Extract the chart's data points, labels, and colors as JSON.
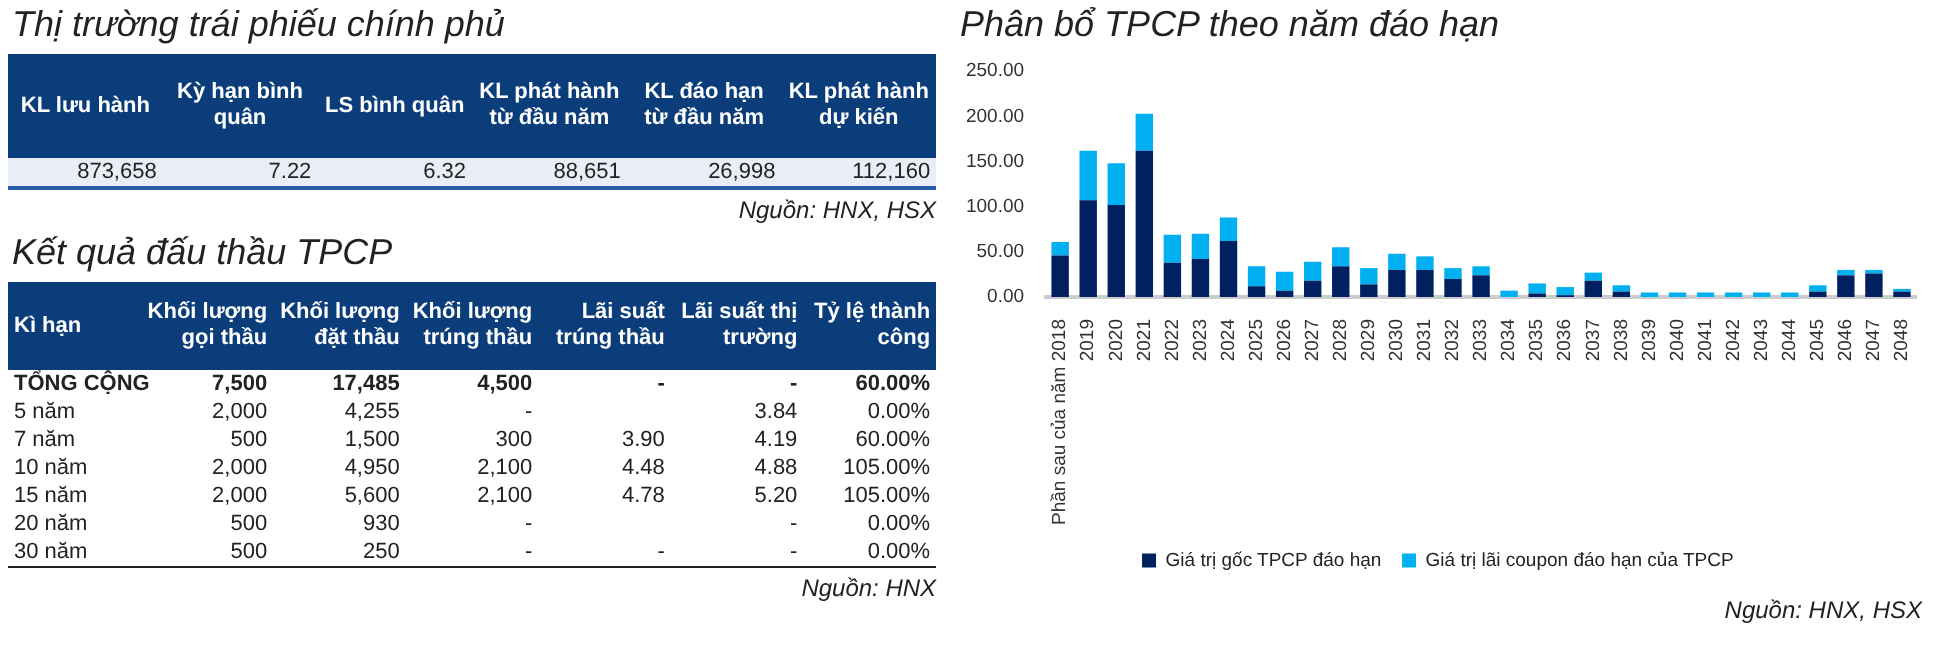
{
  "chart_data": [
    {
      "type": "other",
      "title": "Thị trường trái phiếu chính phủ",
      "categories": [
        "KL lưu hành",
        "Kỳ hạn bình quân",
        "LS bình quân",
        "KL phát hành từ đầu năm",
        "KL đáo hạn từ đầu năm",
        "KL phát hành dự kiến"
      ],
      "cell_labels": [
        [
          "873,658",
          "7.22",
          "6.32",
          "88,651",
          "26,998",
          "112,160"
        ]
      ],
      "annotations": [
        "Nguồn: HNX, HSX"
      ]
    },
    {
      "type": "other",
      "title": "Kết quả đấu thầu TPCP",
      "categories": [
        "Kì hạn",
        "Khối lượng gọi thầu",
        "Khối lượng đặt thầu",
        "Khối lượng trúng thầu",
        "Lãi suất trúng thầu",
        "Lãi suất thị trường",
        "Tỷ lệ thành công"
      ],
      "y_categories": [
        "TỔNG CỘNG",
        "5 năm",
        "7 năm",
        "10 năm",
        "15 năm",
        "20 năm",
        "30 năm"
      ],
      "cell_labels": [
        [
          "7,500",
          "17,485",
          "4,500",
          "-",
          "-",
          "60.00%"
        ],
        [
          "2,000",
          "4,255",
          "-",
          null,
          "3.84",
          "0.00%"
        ],
        [
          "500",
          "1,500",
          "300",
          "3.90",
          "4.19",
          "60.00%"
        ],
        [
          "2,000",
          "4,950",
          "2,100",
          "4.48",
          "4.88",
          "105.00%"
        ],
        [
          "2,000",
          "5,600",
          "2,100",
          "4.78",
          "5.20",
          "105.00%"
        ],
        [
          "500",
          "930",
          "-",
          null,
          "-",
          "0.00%"
        ],
        [
          "500",
          "250",
          "-",
          "-",
          "-",
          "0.00%"
        ]
      ],
      "annotations": [
        "Nguồn: HNX"
      ]
    },
    {
      "type": "bar",
      "title": "Phân bổ TPCP theo năm đáo hạn",
      "stacked": true,
      "legend": "bottom",
      "categories": [
        "Phần sau của năm 2018",
        "2019",
        "2020",
        "2021",
        "2022",
        "2023",
        "2024",
        "2025",
        "2026",
        "2027",
        "2028",
        "2029",
        "2030",
        "2031",
        "2032",
        "2033",
        "2034",
        "2035",
        "2036",
        "2037",
        "2038",
        "2039",
        "2040",
        "2041",
        "2042",
        "2043",
        "2044",
        "2045",
        "2046",
        "2047",
        "2048"
      ],
      "series": [
        {
          "name": "Giá trị gốc TPCP đáo hạn",
          "color": "#002060",
          "values": [
            46,
            107,
            102,
            162,
            38,
            42,
            62,
            12,
            7,
            18,
            34,
            14,
            30,
            30,
            20,
            24,
            0,
            4,
            2,
            18,
            6,
            0,
            0,
            0,
            0,
            0,
            0,
            6,
            24,
            26,
            6
          ]
        },
        {
          "name": "Giá trị lãi coupon đáo hạn của TPCP",
          "color": "#00b0f0",
          "values": [
            15,
            55,
            46,
            41,
            31,
            28,
            26,
            22,
            21,
            21,
            21,
            18,
            18,
            15,
            12,
            10,
            7,
            11,
            9,
            9,
            7,
            5,
            5,
            5,
            5,
            5,
            5,
            7,
            6,
            4,
            3
          ]
        }
      ],
      "ylim": [
        0,
        250
      ],
      "yticks": [
        {
          "value": 0,
          "label": "0.00"
        },
        {
          "value": 50,
          "label": "50.00"
        },
        {
          "value": 100,
          "label": "100.00"
        },
        {
          "value": 150,
          "label": "150.00"
        },
        {
          "value": 200,
          "label": "200.00"
        },
        {
          "value": 250,
          "label": "250.00"
        }
      ],
      "annotations": [
        "Nguồn: HNX, HSX"
      ]
    }
  ]
}
